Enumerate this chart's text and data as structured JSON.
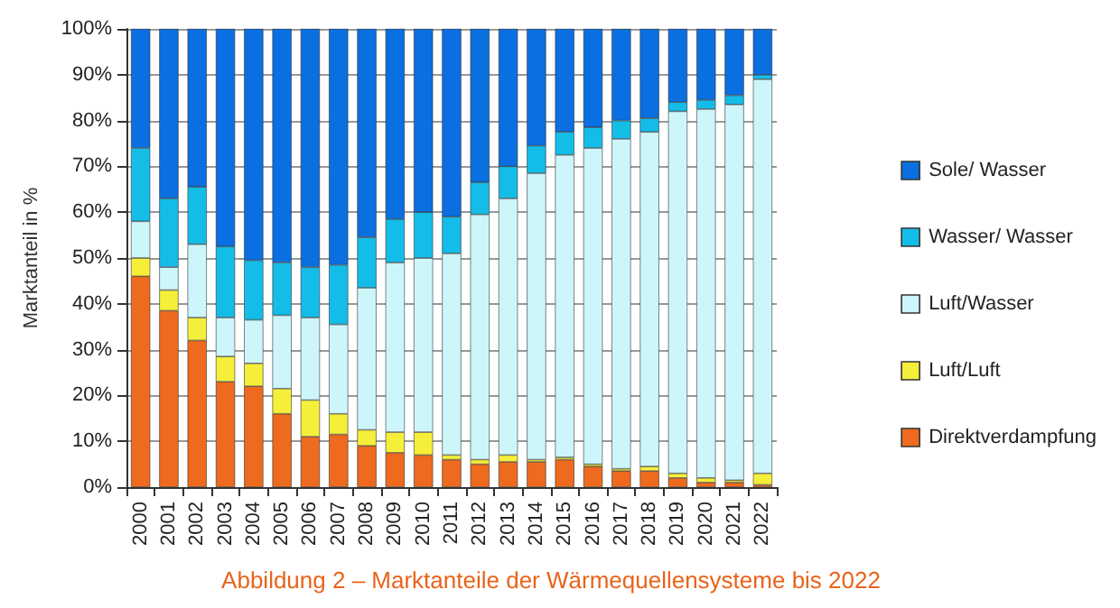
{
  "chart_data": {
    "type": "bar",
    "stacked": true,
    "title": "Abbildung 2 – Marktanteile der Wärmequellensysteme bis 2022",
    "ylabel": "Marktanteil in %",
    "categories": [
      "2000",
      "2001",
      "2002",
      "2003",
      "2004",
      "2005",
      "2006",
      "2007",
      "2008",
      "2009",
      "2010",
      "2011",
      "2012",
      "2013",
      "2014",
      "2015",
      "2016",
      "2017",
      "2018",
      "2019",
      "2020",
      "2021",
      "2022"
    ],
    "series": [
      {
        "name": "Direktverdampfung",
        "color": "#ee6a1e",
        "values": [
          46,
          38.5,
          32,
          23,
          22,
          16,
          11,
          11.5,
          9,
          7.5,
          7,
          6,
          5,
          5.5,
          5.5,
          6,
          4.5,
          3.5,
          3.5,
          2,
          1,
          1,
          0.5
        ]
      },
      {
        "name": "Luft/Luft",
        "color": "#f5ef3a",
        "values": [
          4,
          4.5,
          5,
          5.5,
          5,
          5.5,
          8,
          4.5,
          3.5,
          4.5,
          5,
          1,
          1,
          1.5,
          0.5,
          0.5,
          0.5,
          0.5,
          1,
          1,
          1,
          0.5,
          2.5
        ]
      },
      {
        "name": "Luft/Wasser",
        "color": "#cdf6fa",
        "values": [
          8,
          5,
          16,
          8.5,
          9.5,
          16,
          18,
          19.5,
          31,
          37,
          38,
          44,
          53.5,
          56,
          62.5,
          66,
          69,
          72,
          73,
          79,
          80.5,
          82,
          86
        ]
      },
      {
        "name": "Wasser/ Wasser",
        "color": "#14bde8",
        "values": [
          16,
          15,
          12.5,
          15.5,
          13,
          11.5,
          11,
          13,
          11,
          9.5,
          10,
          8,
          7,
          7,
          6,
          5,
          4.5,
          4,
          3,
          2,
          2,
          2,
          1
        ]
      },
      {
        "name": "Sole/ Wasser",
        "color": "#0a6fe0",
        "values": [
          26,
          37,
          34.5,
          47.5,
          50.5,
          51,
          52,
          51.5,
          45.5,
          41.5,
          40,
          41,
          33.5,
          30,
          25.5,
          22.5,
          21.5,
          20,
          19.5,
          16,
          15.5,
          14.5,
          10
        ]
      }
    ],
    "ylim": [
      0,
      100
    ],
    "yticks": [
      {
        "value": 0,
        "label": "0%"
      },
      {
        "value": 10,
        "label": "10%"
      },
      {
        "value": 20,
        "label": "20%"
      },
      {
        "value": 30,
        "label": "30%"
      },
      {
        "value": 40,
        "label": "40%"
      },
      {
        "value": 50,
        "label": "50%"
      },
      {
        "value": 60,
        "label": "60%"
      },
      {
        "value": 70,
        "label": "70%"
      },
      {
        "value": 80,
        "label": "80%"
      },
      {
        "value": 90,
        "label": "90%"
      },
      {
        "value": 100,
        "label": "100%"
      }
    ],
    "grid": "y",
    "legend": "right"
  }
}
